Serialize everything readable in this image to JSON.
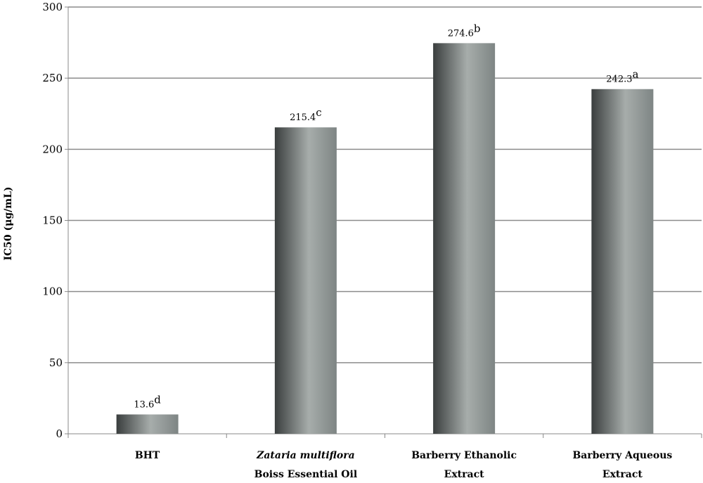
{
  "chart_data": {
    "type": "bar",
    "y_label": "IC50 (μg/mL)",
    "categories": [
      [
        "BHT"
      ],
      [
        "Zataria multiflora",
        "Boiss  Essential Oil"
      ],
      [
        "Barberry Ethanolic",
        "Extract"
      ],
      [
        "Barberry Aqueous",
        "Extract"
      ]
    ],
    "values": [
      13.6,
      215.4,
      274.6,
      242.3
    ],
    "significance_letters": [
      "d",
      "c",
      "b",
      "a"
    ],
    "ylim": [
      0,
      300
    ],
    "yticks": [
      0,
      50,
      100,
      150,
      200,
      250,
      300
    ],
    "grid": true
  }
}
